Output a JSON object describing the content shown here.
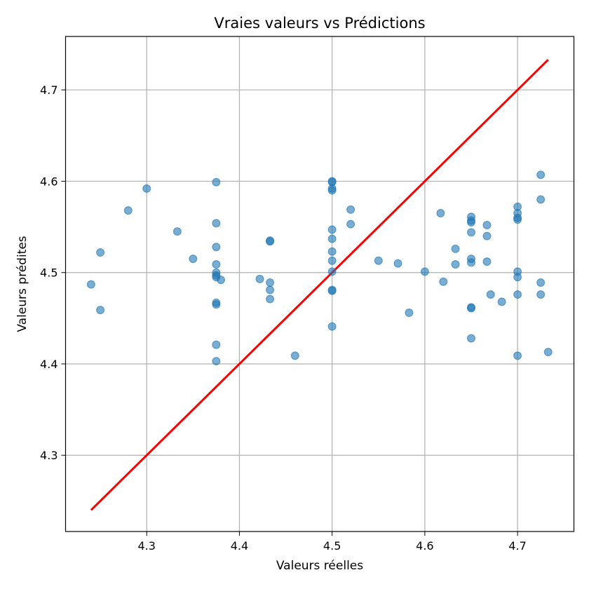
{
  "chart_data": {
    "type": "scatter",
    "title": "Vraies valeurs vs Prédictions",
    "xlabel": "Valeurs réelles",
    "ylabel": "Valeurs prédites",
    "xlim": [
      4.2125,
      4.7608
    ],
    "ylim": [
      4.2165,
      4.7585
    ],
    "xticks": [
      4.3,
      4.4,
      4.5,
      4.6,
      4.7
    ],
    "yticks": [
      4.3,
      4.4,
      4.5,
      4.6,
      4.7
    ],
    "xtick_labels": [
      "4.3",
      "4.4",
      "4.5",
      "4.6",
      "4.7"
    ],
    "ytick_labels": [
      "4.3",
      "4.4",
      "4.5",
      "4.6",
      "4.7"
    ],
    "grid": true,
    "point_color": "#1f77b4",
    "line_color": "#ff0000",
    "reference_line": {
      "x": [
        4.24,
        4.733
      ],
      "y": [
        4.24,
        4.733
      ]
    },
    "points": [
      {
        "x": 4.24,
        "y": 4.487
      },
      {
        "x": 4.25,
        "y": 4.522
      },
      {
        "x": 4.25,
        "y": 4.459
      },
      {
        "x": 4.28,
        "y": 4.568
      },
      {
        "x": 4.3,
        "y": 4.592
      },
      {
        "x": 4.333,
        "y": 4.545
      },
      {
        "x": 4.35,
        "y": 4.515
      },
      {
        "x": 4.375,
        "y": 4.599
      },
      {
        "x": 4.375,
        "y": 4.554
      },
      {
        "x": 4.375,
        "y": 4.528
      },
      {
        "x": 4.375,
        "y": 4.509
      },
      {
        "x": 4.375,
        "y": 4.5
      },
      {
        "x": 4.375,
        "y": 4.497
      },
      {
        "x": 4.375,
        "y": 4.495
      },
      {
        "x": 4.375,
        "y": 4.467
      },
      {
        "x": 4.375,
        "y": 4.465
      },
      {
        "x": 4.375,
        "y": 4.421
      },
      {
        "x": 4.375,
        "y": 4.403
      },
      {
        "x": 4.38,
        "y": 4.492
      },
      {
        "x": 4.422,
        "y": 4.493
      },
      {
        "x": 4.433,
        "y": 4.535
      },
      {
        "x": 4.433,
        "y": 4.534
      },
      {
        "x": 4.433,
        "y": 4.489
      },
      {
        "x": 4.433,
        "y": 4.481
      },
      {
        "x": 4.433,
        "y": 4.471
      },
      {
        "x": 4.46,
        "y": 4.409
      },
      {
        "x": 4.5,
        "y": 4.6
      },
      {
        "x": 4.5,
        "y": 4.599
      },
      {
        "x": 4.5,
        "y": 4.592
      },
      {
        "x": 4.5,
        "y": 4.59
      },
      {
        "x": 4.5,
        "y": 4.547
      },
      {
        "x": 4.5,
        "y": 4.537
      },
      {
        "x": 4.5,
        "y": 4.523
      },
      {
        "x": 4.5,
        "y": 4.513
      },
      {
        "x": 4.5,
        "y": 4.501
      },
      {
        "x": 4.5,
        "y": 4.481
      },
      {
        "x": 4.5,
        "y": 4.48
      },
      {
        "x": 4.5,
        "y": 4.441
      },
      {
        "x": 4.52,
        "y": 4.569
      },
      {
        "x": 4.52,
        "y": 4.553
      },
      {
        "x": 4.55,
        "y": 4.513
      },
      {
        "x": 4.571,
        "y": 4.51
      },
      {
        "x": 4.583,
        "y": 4.456
      },
      {
        "x": 4.6,
        "y": 4.501
      },
      {
        "x": 4.617,
        "y": 4.565
      },
      {
        "x": 4.62,
        "y": 4.49
      },
      {
        "x": 4.633,
        "y": 4.526
      },
      {
        "x": 4.633,
        "y": 4.509
      },
      {
        "x": 4.65,
        "y": 4.561
      },
      {
        "x": 4.65,
        "y": 4.557
      },
      {
        "x": 4.65,
        "y": 4.555
      },
      {
        "x": 4.65,
        "y": 4.544
      },
      {
        "x": 4.65,
        "y": 4.515
      },
      {
        "x": 4.65,
        "y": 4.511
      },
      {
        "x": 4.65,
        "y": 4.462
      },
      {
        "x": 4.65,
        "y": 4.461
      },
      {
        "x": 4.65,
        "y": 4.428
      },
      {
        "x": 4.667,
        "y": 4.552
      },
      {
        "x": 4.667,
        "y": 4.54
      },
      {
        "x": 4.667,
        "y": 4.512
      },
      {
        "x": 4.671,
        "y": 4.476
      },
      {
        "x": 4.683,
        "y": 4.468
      },
      {
        "x": 4.7,
        "y": 4.572
      },
      {
        "x": 4.7,
        "y": 4.565
      },
      {
        "x": 4.7,
        "y": 4.56
      },
      {
        "x": 4.7,
        "y": 4.558
      },
      {
        "x": 4.7,
        "y": 4.501
      },
      {
        "x": 4.7,
        "y": 4.495
      },
      {
        "x": 4.7,
        "y": 4.476
      },
      {
        "x": 4.7,
        "y": 4.409
      },
      {
        "x": 4.725,
        "y": 4.607
      },
      {
        "x": 4.725,
        "y": 4.58
      },
      {
        "x": 4.725,
        "y": 4.489
      },
      {
        "x": 4.725,
        "y": 4.476
      },
      {
        "x": 4.733,
        "y": 4.413
      }
    ]
  }
}
